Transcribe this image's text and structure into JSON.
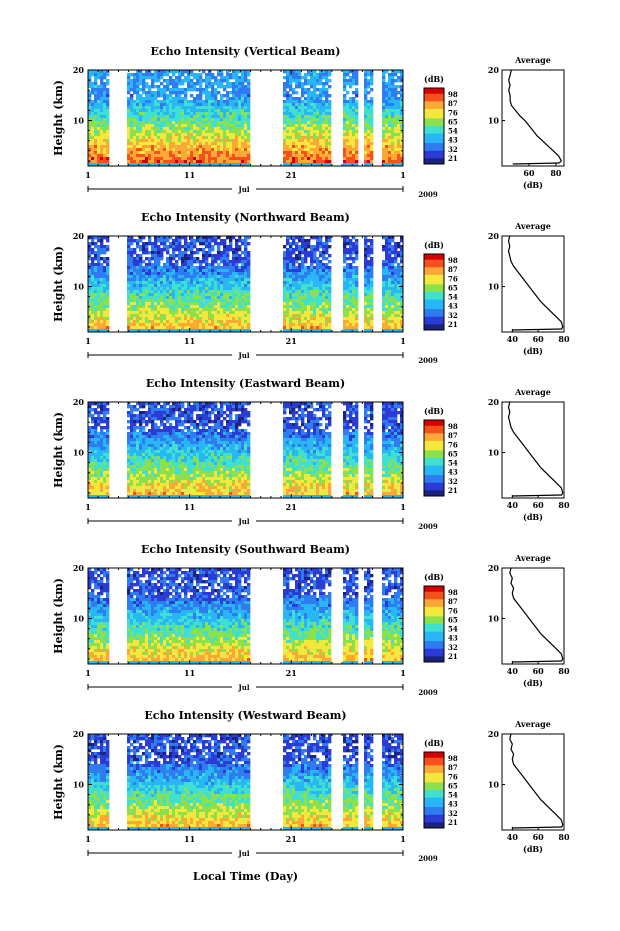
{
  "chart_data": [
    {
      "type": "heatmap",
      "title": "Echo Intensity (Vertical Beam)",
      "ylabel": "Height (km)",
      "ylim": [
        1,
        20
      ],
      "y_ticks": [
        "10",
        "20"
      ],
      "x_ticks": [
        "1",
        "11",
        "21",
        "1"
      ],
      "month_label": "Jul",
      "year_label": "2009",
      "colorbar": {
        "unit": "(dB)",
        "ticks": [
          "98",
          "87",
          "76",
          "65",
          "54",
          "43",
          "32",
          "21"
        ]
      },
      "average_profile": {
        "title": "Average",
        "xlabel": "(dB)",
        "xlim": [
          40,
          86
        ],
        "x_ticks": [
          "60",
          "80"
        ],
        "y_ticks": [
          "10",
          "20"
        ],
        "height_km": [
          1.5,
          2,
          3,
          4,
          5,
          6,
          7,
          8,
          9,
          10,
          11,
          12,
          13,
          14,
          15,
          16,
          17,
          18,
          19,
          20
        ],
        "mean_db": [
          82,
          84,
          82,
          78,
          74,
          70,
          66,
          63,
          60,
          57,
          53,
          50,
          47,
          46,
          46,
          45,
          46,
          45,
          46,
          47
        ]
      }
    },
    {
      "type": "heatmap",
      "title": "Echo Intensity (Northward Beam)",
      "ylabel": "Height (km)",
      "ylim": [
        1,
        20
      ],
      "y_ticks": [
        "10",
        "20"
      ],
      "x_ticks": [
        "1",
        "11",
        "21",
        "1"
      ],
      "month_label": "Jul",
      "year_label": "2009",
      "colorbar": {
        "unit": "(dB)",
        "ticks": [
          "98",
          "87",
          "76",
          "65",
          "54",
          "43",
          "32",
          "21"
        ]
      },
      "average_profile": {
        "title": "Average",
        "xlabel": "(dB)",
        "xlim": [
          32,
          80
        ],
        "x_ticks": [
          "40",
          "60",
          "80"
        ],
        "y_ticks": [
          "10",
          "20"
        ],
        "height_km": [
          1.5,
          2,
          3,
          4,
          5,
          6,
          7,
          8,
          9,
          10,
          11,
          12,
          13,
          14,
          15,
          16,
          17,
          18,
          19,
          20
        ],
        "mean_db": [
          78,
          79,
          78,
          74,
          70,
          66,
          62,
          59,
          56,
          53,
          50,
          47,
          44,
          41,
          39,
          38,
          37,
          38,
          37,
          38
        ]
      }
    },
    {
      "type": "heatmap",
      "title": "Echo Intensity (Eastward Beam)",
      "ylabel": "Height (km)",
      "ylim": [
        1,
        20
      ],
      "y_ticks": [
        "10",
        "20"
      ],
      "x_ticks": [
        "1",
        "11",
        "21",
        "1"
      ],
      "month_label": "Jul",
      "year_label": "2009",
      "colorbar": {
        "unit": "(dB)",
        "ticks": [
          "98",
          "87",
          "76",
          "65",
          "54",
          "43",
          "32",
          "21"
        ]
      },
      "average_profile": {
        "title": "Average",
        "xlabel": "(dB)",
        "xlim": [
          32,
          80
        ],
        "x_ticks": [
          "40",
          "60",
          "80"
        ],
        "y_ticks": [
          "10",
          "20"
        ],
        "height_km": [
          1.5,
          2,
          3,
          4,
          5,
          6,
          7,
          8,
          9,
          10,
          11,
          12,
          13,
          14,
          15,
          16,
          17,
          18,
          19,
          20
        ],
        "mean_db": [
          78,
          79,
          78,
          74,
          70,
          66,
          62,
          59,
          56,
          53,
          50,
          47,
          44,
          41,
          39,
          38,
          37,
          38,
          37,
          38
        ]
      }
    },
    {
      "type": "heatmap",
      "title": "Echo Intensity (Southward Beam)",
      "ylabel": "Height (km)",
      "ylim": [
        1,
        20
      ],
      "y_ticks": [
        "10",
        "20"
      ],
      "x_ticks": [
        "1",
        "11",
        "21",
        "1"
      ],
      "month_label": "Jul",
      "year_label": "2009",
      "colorbar": {
        "unit": "(dB)",
        "ticks": [
          "98",
          "87",
          "76",
          "65",
          "54",
          "43",
          "32",
          "21"
        ]
      },
      "average_profile": {
        "title": "Average",
        "xlabel": "(dB)",
        "xlim": [
          32,
          80
        ],
        "x_ticks": [
          "40",
          "60",
          "80"
        ],
        "y_ticks": [
          "10",
          "20"
        ],
        "height_km": [
          1.5,
          2,
          3,
          4,
          5,
          6,
          7,
          8,
          9,
          10,
          11,
          12,
          13,
          14,
          15,
          16,
          17,
          18,
          19,
          20
        ],
        "mean_db": [
          78,
          79,
          78,
          74,
          70,
          66,
          62,
          59,
          56,
          53,
          50,
          47,
          44,
          41,
          40,
          41,
          39,
          40,
          38,
          39
        ]
      }
    },
    {
      "type": "heatmap",
      "title": "Echo Intensity (Westward Beam)",
      "ylabel": "Height (km)",
      "ylim": [
        1,
        20
      ],
      "y_ticks": [
        "10",
        "20"
      ],
      "x_ticks": [
        "1",
        "11",
        "21",
        "1"
      ],
      "month_label": "Jul",
      "year_label": "2009",
      "colorbar": {
        "unit": "(dB)",
        "ticks": [
          "98",
          "87",
          "76",
          "65",
          "54",
          "43",
          "32",
          "21"
        ]
      },
      "average_profile": {
        "title": "Average",
        "xlabel": "(dB)",
        "xlim": [
          32,
          80
        ],
        "x_ticks": [
          "40",
          "60",
          "80"
        ],
        "y_ticks": [
          "10",
          "20"
        ],
        "height_km": [
          1.5,
          2,
          3,
          4,
          5,
          6,
          7,
          8,
          9,
          10,
          11,
          12,
          13,
          14,
          15,
          16,
          17,
          18,
          19,
          20
        ],
        "mean_db": [
          78,
          79,
          78,
          74,
          70,
          66,
          62,
          59,
          56,
          53,
          50,
          47,
          44,
          41,
          40,
          41,
          39,
          40,
          38,
          39
        ]
      }
    }
  ],
  "xlabel": "Local Time (Day)",
  "data_gaps_day": [
    [
      3.0,
      4.8
    ],
    [
      16.8,
      20.2
    ],
    [
      25.0,
      26.0
    ],
    [
      27.6,
      28.2
    ],
    [
      29.0,
      29.8
    ]
  ],
  "colors": {
    "scale": [
      "#1a237e",
      "#2a3bd6",
      "#2f7bf0",
      "#29b6f6",
      "#3fe0d0",
      "#8be04e",
      "#f5e83c",
      "#fca836",
      "#f4511e",
      "#d50000"
    ]
  }
}
